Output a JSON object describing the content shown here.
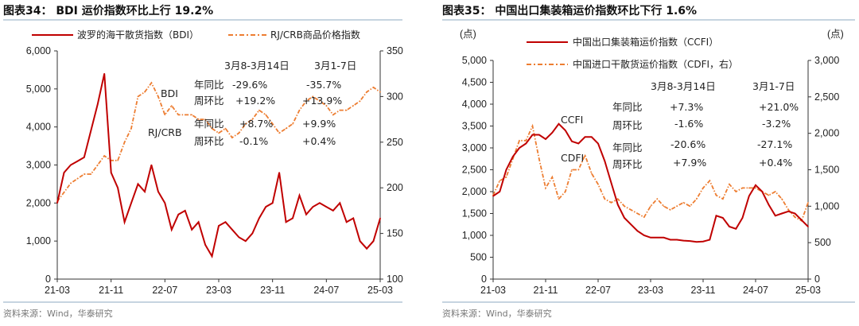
{
  "chart_data": [
    {
      "type": "line",
      "title": "图表34： BDI 运价指数环比上行 19.2%",
      "source": "资料来源：Wind，华泰研究",
      "x": [
        "21-03",
        "21-04",
        "21-05",
        "21-06",
        "21-07",
        "21-08",
        "21-09",
        "21-10",
        "21-11",
        "21-12",
        "22-01",
        "22-02",
        "22-03",
        "22-04",
        "22-05",
        "22-06",
        "22-07",
        "22-08",
        "22-09",
        "22-10",
        "22-11",
        "22-12",
        "23-01",
        "23-02",
        "23-03",
        "23-04",
        "23-05",
        "23-06",
        "23-07",
        "23-08",
        "23-09",
        "23-10",
        "23-11",
        "23-12",
        "24-01",
        "24-02",
        "24-03",
        "24-04",
        "24-05",
        "24-06",
        "24-07",
        "24-08",
        "24-09",
        "24-10",
        "24-11",
        "24-12",
        "25-01",
        "25-02",
        "25-03"
      ],
      "xticks": [
        "21-03",
        "21-11",
        "22-07",
        "23-03",
        "23-11",
        "24-07",
        "25-03"
      ],
      "y_left": {
        "range": [
          0,
          6000
        ],
        "ticks": [
          "0",
          "1,000",
          "2,000",
          "3,000",
          "4,000",
          "5,000",
          "6,000"
        ]
      },
      "y_right": {
        "range": [
          100,
          350
        ],
        "ticks": [
          "100",
          "150",
          "200",
          "250",
          "300",
          "350"
        ]
      },
      "series": [
        {
          "name": "波罗的海干散货指数（BDI）",
          "axis": "left",
          "style": "solid",
          "color": "#C00000",
          "values": [
            2000,
            2800,
            3000,
            3100,
            3200,
            3900,
            4600,
            5400,
            2800,
            2400,
            1500,
            2000,
            2500,
            2300,
            3000,
            2300,
            2000,
            1300,
            1700,
            1800,
            1300,
            1500,
            900,
            600,
            1400,
            1500,
            1300,
            1100,
            1000,
            1200,
            1600,
            1900,
            2000,
            2800,
            1500,
            1600,
            2200,
            1700,
            1900,
            2000,
            1900,
            1800,
            2000,
            1500,
            1600,
            1000,
            800,
            1000,
            1600
          ]
        },
        {
          "name": "RJ/CRB商品价格指数",
          "axis": "right",
          "style": "dash-dot",
          "color": "#ED7D31",
          "values": [
            185,
            195,
            205,
            210,
            215,
            215,
            225,
            235,
            230,
            230,
            250,
            265,
            300,
            305,
            315,
            300,
            280,
            290,
            280,
            280,
            280,
            275,
            275,
            265,
            260,
            265,
            255,
            260,
            270,
            275,
            285,
            280,
            270,
            260,
            265,
            270,
            285,
            295,
            300,
            295,
            290,
            280,
            285,
            285,
            290,
            295,
            305,
            310,
            305
          ]
        }
      ],
      "series_labels": [
        "BDI",
        "RJ/CRB"
      ],
      "table": {
        "headers": [
          "3月8-3月14日",
          "3月1-7日"
        ],
        "rows": [
          [
            "年同比",
            "-29.6%",
            "-35.7%"
          ],
          [
            "周环比",
            "+19.2%",
            "+13.9%"
          ],
          [
            "年同比",
            "+8.7%",
            "+9.9%"
          ],
          [
            "周环比",
            "-0.1%",
            "+0.4%"
          ]
        ]
      },
      "legend": "top"
    },
    {
      "type": "line",
      "title": "图表35： 中国出口集装箱运价指数环比下行 1.6%",
      "source": "资料来源：Wind，华泰研究",
      "unit_left": "(点)",
      "unit_right": "(点)",
      "x": [
        "21-03",
        "21-04",
        "21-05",
        "21-06",
        "21-07",
        "21-08",
        "21-09",
        "21-10",
        "21-11",
        "21-12",
        "22-01",
        "22-02",
        "22-03",
        "22-04",
        "22-05",
        "22-06",
        "22-07",
        "22-08",
        "22-09",
        "22-10",
        "22-11",
        "22-12",
        "23-01",
        "23-02",
        "23-03",
        "23-04",
        "23-05",
        "23-06",
        "23-07",
        "23-08",
        "23-09",
        "23-10",
        "23-11",
        "23-12",
        "24-01",
        "24-02",
        "24-03",
        "24-04",
        "24-05",
        "24-06",
        "24-07",
        "24-08",
        "24-09",
        "24-10",
        "24-11",
        "24-12",
        "25-01",
        "25-02",
        "25-03"
      ],
      "xticks": [
        "21-03",
        "21-11",
        "22-07",
        "23-03",
        "23-11",
        "24-07",
        "25-03"
      ],
      "y_left": {
        "range": [
          0,
          5000
        ],
        "ticks": [
          "0",
          "500",
          "1,000",
          "1,500",
          "2,000",
          "2,500",
          "3,000",
          "3,500",
          "4,000",
          "4,500",
          "5,000"
        ]
      },
      "y_right": {
        "range": [
          0,
          3000
        ],
        "ticks": [
          "0",
          "500",
          "1,000",
          "1,500",
          "2,000",
          "2,500",
          "3,000"
        ]
      },
      "series": [
        {
          "name": "中国出口集装箱运价指数（CCFI）",
          "axis": "left",
          "style": "solid",
          "color": "#C00000",
          "values": [
            1900,
            2000,
            2500,
            2800,
            3000,
            3100,
            3300,
            3300,
            3200,
            3350,
            3550,
            3400,
            3150,
            3100,
            3250,
            3250,
            3100,
            2700,
            2200,
            1700,
            1400,
            1250,
            1100,
            1000,
            950,
            950,
            950,
            900,
            900,
            880,
            870,
            850,
            860,
            900,
            1450,
            1400,
            1200,
            1150,
            1400,
            1900,
            2150,
            2000,
            1700,
            1450,
            1500,
            1550,
            1500,
            1350,
            1200
          ]
        },
        {
          "name": "中国进口干散货运价指数（CDFI，右）",
          "axis": "right",
          "style": "dash-dot",
          "color": "#ED7D31",
          "values": [
            1150,
            1350,
            1400,
            1650,
            1900,
            1900,
            2100,
            1650,
            1250,
            1400,
            1100,
            1200,
            1500,
            1500,
            1700,
            1450,
            1300,
            1100,
            1050,
            1100,
            1000,
            950,
            900,
            850,
            1000,
            1100,
            1000,
            950,
            1000,
            1050,
            1000,
            1100,
            1250,
            1350,
            1150,
            1100,
            1300,
            1200,
            1250,
            1250,
            1250,
            1200,
            1150,
            1200,
            1100,
            950,
            850,
            800,
            1050
          ]
        }
      ],
      "series_labels": [
        "CCFI",
        "CDFI"
      ],
      "table": {
        "headers": [
          "3月8-3月14日",
          "3月1-7日"
        ],
        "rows": [
          [
            "年同比",
            "+7.3%",
            "+21.0%"
          ],
          [
            "周环比",
            "-1.6%",
            "-3.2%"
          ],
          [
            "年同比",
            "-20.6%",
            "-27.1%"
          ],
          [
            "周环比",
            "+7.9%",
            "+0.4%"
          ]
        ]
      },
      "legend": "top"
    }
  ]
}
